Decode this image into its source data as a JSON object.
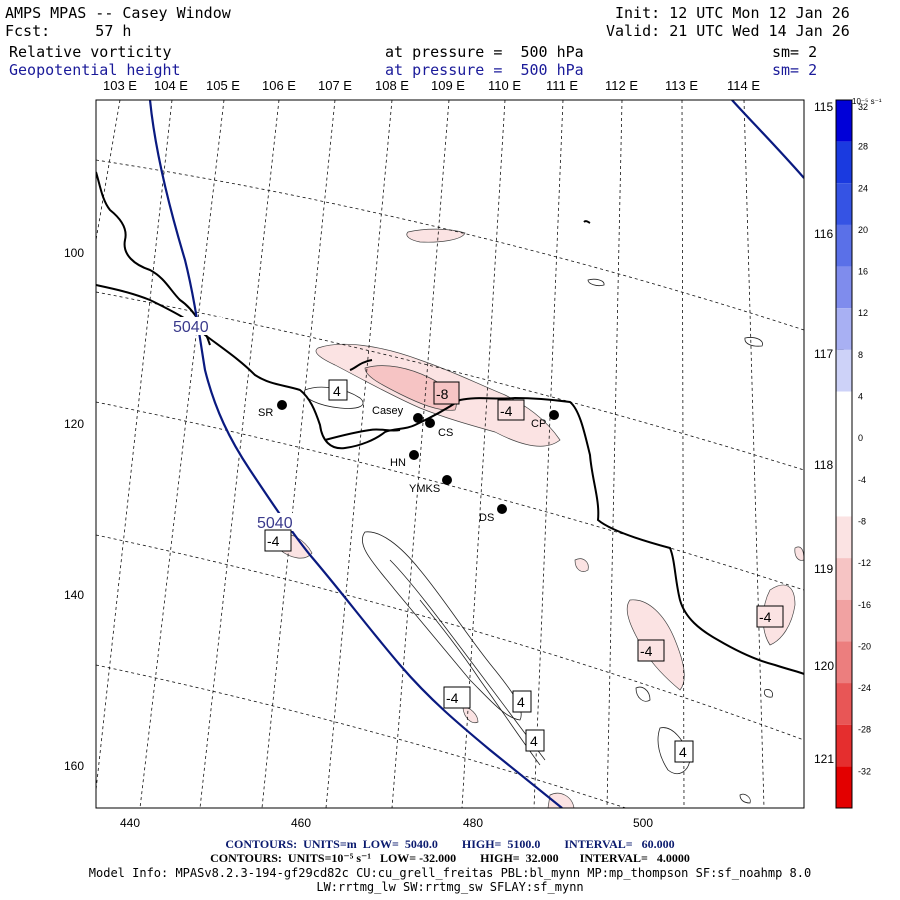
{
  "header": {
    "title": "AMPS MPAS -- Casey Window",
    "fcst": "Fcst:     57 h",
    "init": "Init: 12 UTC Mon 12 Jan 26",
    "valid": "Valid: 21 UTC Wed 14 Jan 26",
    "field1_name": "Relative vorticity",
    "field1_level": "at pressure =  500 hPa",
    "field1_sm": "sm= 2",
    "field2_name": "Geopotential height",
    "field2_level": "at pressure =  500 hPa",
    "field2_sm": "sm= 2"
  },
  "map": {
    "top_lon_labels": [
      "103 E",
      "104 E",
      "105 E",
      "106 E",
      "107 E",
      "108 E",
      "109 E",
      "110 E",
      "111 E",
      "112 E",
      "113 E",
      "114 E"
    ],
    "right_lon_labels": [
      "115 E",
      "116 E",
      "117 E",
      "118 E",
      "119 E",
      "120 E",
      "121 E"
    ],
    "x_axis_ticks": [
      "440",
      "460",
      "480",
      "500"
    ],
    "y_axis_ticks": [
      "100",
      "120",
      "140",
      "160"
    ],
    "stations": [
      {
        "name": "SR"
      },
      {
        "name": "Casey"
      },
      {
        "name": "CS"
      },
      {
        "name": "HN"
      },
      {
        "name": "YMKS"
      },
      {
        "name": "DS"
      },
      {
        "name": "CP"
      }
    ],
    "height_labels": [
      "5040",
      "5040"
    ],
    "vort_labels": [
      "4",
      "-8",
      "-4",
      "-4",
      "-4",
      "-4",
      "-4",
      "4",
      "4",
      "4"
    ],
    "colors": {
      "height_contour": "#0a1a80",
      "coast": "#000000",
      "grid": "#000000"
    }
  },
  "colorbar": {
    "unit": "10⁻⁵ s⁻¹",
    "ticks": [
      "32",
      "28",
      "24",
      "20",
      "16",
      "12",
      "8",
      "4",
      "0",
      "-4",
      "-8",
      "-12",
      "-16",
      "-20",
      "-24",
      "-28",
      "-32"
    ],
    "colors": [
      "#0000d8",
      "#1a3ae0",
      "#3553e4",
      "#5a70e8",
      "#7f8ced",
      "#a8b0f3",
      "#cdd2f8",
      "#ffffff",
      "#ffffff",
      "#ffffff",
      "#fbe3e3",
      "#f6c4c4",
      "#f1a2a2",
      "#ec7e7e",
      "#e85656",
      "#e52e2e",
      "#e30000"
    ]
  },
  "footer": {
    "line1": "CONTOURS:  UNITS=m  LOW=  5040.0        HIGH=  5100.0        INTERVAL=   60.000",
    "line2": "CONTOURS:  UNITS=10⁻⁵ s⁻¹   LOW= -32.000        HIGH=  32.000       INTERVAL=   4.0000",
    "line3": "Model Info: MPASv8.2.3-194-gf29cd82c CU:cu_grell_freitas PBL:bl_mynn MP:mp_thompson SF:sf_noahmp 8.0",
    "line4": "LW:rrtmg_lw SW:rrtmg_sw SFLAY:sf_mynn"
  }
}
